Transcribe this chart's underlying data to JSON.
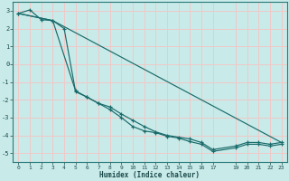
{
  "xlabel": "Humidex (Indice chaleur)",
  "bg_color": "#c8eae8",
  "grid_color": "#f0c8c8",
  "line_color": "#1a6b6b",
  "xlim": [
    -0.5,
    23.5
  ],
  "ylim": [
    -5.5,
    3.5
  ],
  "yticks": [
    -5,
    -4,
    -3,
    -2,
    -1,
    0,
    1,
    2,
    3
  ],
  "xticks": [
    0,
    1,
    2,
    3,
    4,
    5,
    6,
    7,
    8,
    9,
    10,
    11,
    12,
    13,
    14,
    15,
    16,
    17,
    19,
    20,
    21,
    22,
    23
  ],
  "line1_x": [
    0,
    1,
    2,
    3,
    4,
    5,
    6,
    7,
    8,
    9,
    10,
    11,
    12,
    13,
    14,
    15,
    16,
    17,
    19,
    20,
    21,
    22,
    23
  ],
  "line1_y": [
    2.85,
    3.05,
    2.5,
    2.45,
    2.0,
    -1.55,
    -1.85,
    -2.2,
    -2.55,
    -3.0,
    -3.5,
    -3.75,
    -3.85,
    -4.05,
    -4.15,
    -4.35,
    -4.5,
    -4.9,
    -4.7,
    -4.5,
    -4.5,
    -4.6,
    -4.5
  ],
  "line2_x": [
    0,
    3,
    5,
    6,
    7,
    8,
    9,
    10,
    11,
    12,
    13,
    14,
    15,
    16,
    17,
    19,
    20,
    21,
    22,
    23
  ],
  "line2_y": [
    2.85,
    2.45,
    -1.5,
    -1.85,
    -2.2,
    -2.4,
    -2.8,
    -3.15,
    -3.5,
    -3.8,
    -4.0,
    -4.1,
    -4.2,
    -4.4,
    -4.8,
    -4.6,
    -4.4,
    -4.4,
    -4.5,
    -4.4
  ],
  "line3_x": [
    0,
    3,
    23
  ],
  "line3_y": [
    2.85,
    2.45,
    -4.4
  ]
}
